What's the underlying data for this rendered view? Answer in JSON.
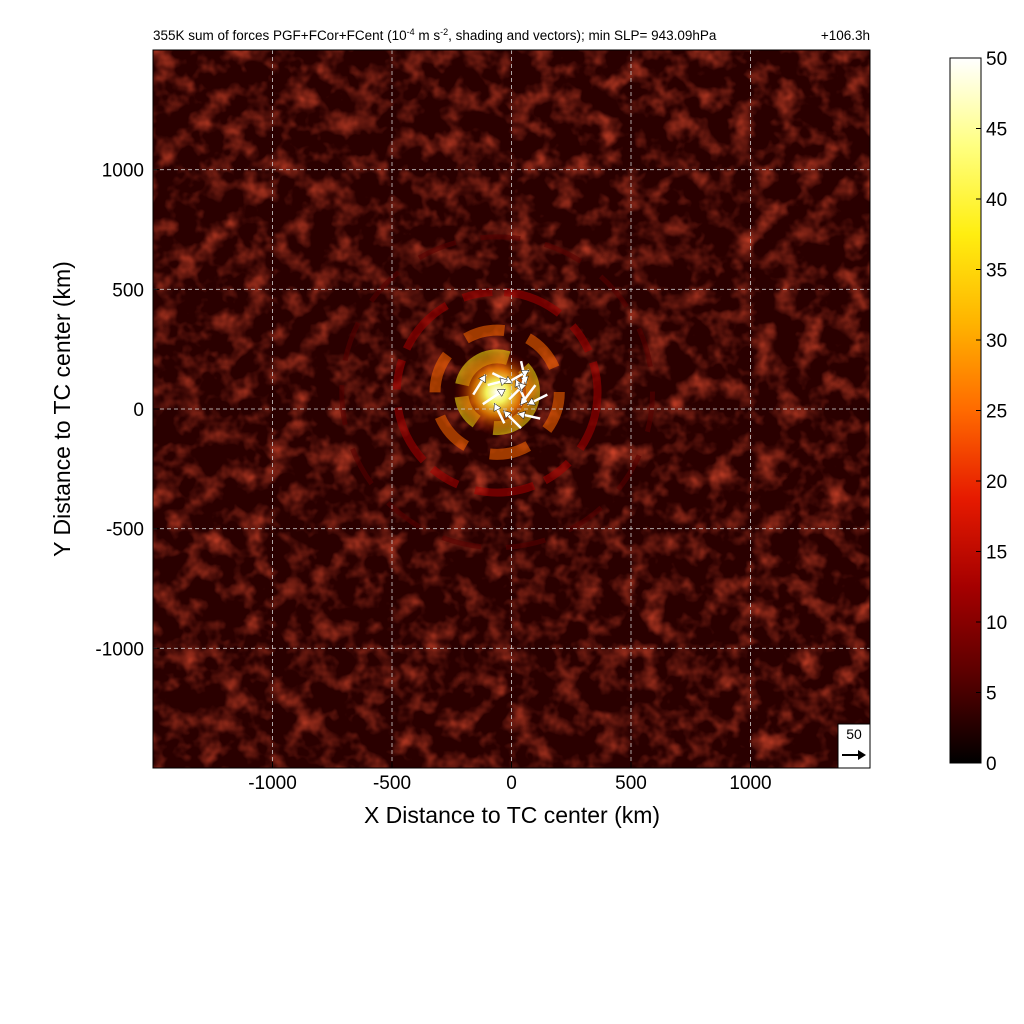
{
  "chart_data": {
    "type": "heatmap",
    "title": "355K sum of forces PGF+FCor+FCent (10",
    "title_exponent": "-4",
    "title_units_tail": " m s",
    "title_units_exponent": "-2",
    "title_rest": ", shading and vectors); min SLP= 943.09hPa",
    "time_label": "+106.3h",
    "xlabel": "X Distance to TC center (km)",
    "ylabel": "Y Distance to TC center (km)",
    "xlim": [
      -1500,
      1500
    ],
    "ylim": [
      -1500,
      1500
    ],
    "xticks": [
      -1000,
      -500,
      0,
      500,
      1000
    ],
    "yticks": [
      -1000,
      -500,
      0,
      500,
      1000
    ],
    "grid": true,
    "grid_style": "dashed",
    "colormap": "hot",
    "colorbar": {
      "min": 0,
      "max": 50,
      "ticks": [
        0,
        5,
        10,
        15,
        20,
        25,
        30,
        35,
        40,
        45,
        50
      ],
      "colors": [
        "#000000",
        "#5a0000",
        "#a50000",
        "#e61a00",
        "#ff6a00",
        "#ffb400",
        "#ffee10",
        "#ffff80",
        "#ffffff"
      ]
    },
    "reference_vector": {
      "value": 50,
      "label": "50"
    },
    "field_features": {
      "background_magnitude": 8,
      "inner_core_max": 50,
      "center_x": -60,
      "center_y": 70,
      "rings": [
        {
          "radius_km": 150,
          "magnitude": 40
        },
        {
          "radius_km": 260,
          "magnitude": 22
        },
        {
          "radius_km": 420,
          "magnitude": 14
        },
        {
          "radius_km": 650,
          "magnitude": 9
        }
      ]
    },
    "vectors": [
      {
        "x": -120,
        "y": 20,
        "u": 45,
        "v": 30
      },
      {
        "x": -80,
        "y": 150,
        "u": 40,
        "v": -20
      },
      {
        "x": 40,
        "y": 200,
        "u": 10,
        "v": -45
      },
      {
        "x": 100,
        "y": 100,
        "u": -30,
        "v": -40
      },
      {
        "x": 120,
        "y": -40,
        "u": -45,
        "v": 10
      },
      {
        "x": 40,
        "y": -80,
        "u": -35,
        "v": 35
      },
      {
        "x": -30,
        "y": -60,
        "u": -20,
        "v": 40
      },
      {
        "x": -160,
        "y": 60,
        "u": 25,
        "v": 40
      },
      {
        "x": 0,
        "y": 120,
        "u": 35,
        "v": 20
      },
      {
        "x": 60,
        "y": 30,
        "u": -20,
        "v": 45
      },
      {
        "x": -10,
        "y": 40,
        "u": 30,
        "v": 30
      },
      {
        "x": -100,
        "y": 100,
        "u": 40,
        "v": 10
      },
      {
        "x": 60,
        "y": 160,
        "u": -10,
        "v": -40
      },
      {
        "x": 150,
        "y": 60,
        "u": -40,
        "v": -20
      }
    ]
  }
}
